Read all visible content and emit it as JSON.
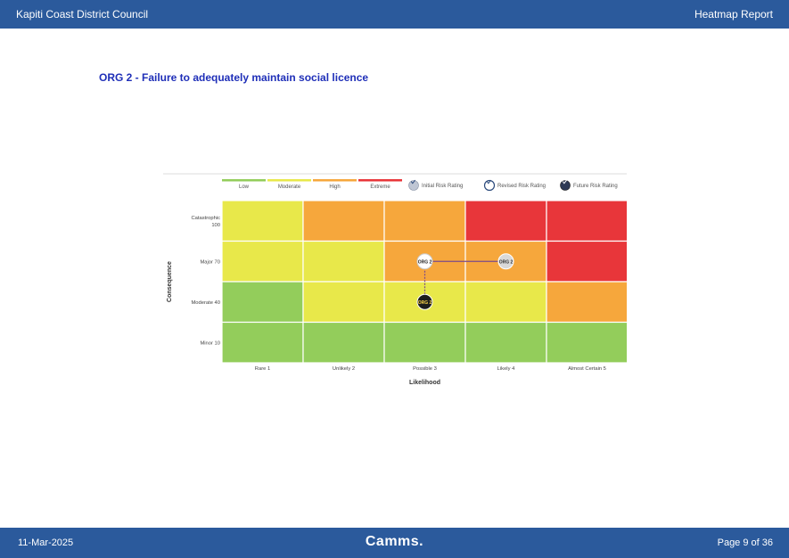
{
  "header": {
    "org_name": "Kapiti Coast District Council",
    "report_title": "Heatmap Report"
  },
  "risk": {
    "title": "ORG 2 - Failure to adequately maintain social licence"
  },
  "footer": {
    "date": "11-Mar-2025",
    "brand": "Camms.",
    "page": "Page 9 of 36"
  },
  "colors": {
    "low": "#93cd5b",
    "moderate": "#e8e84a",
    "high": "#f6a73c",
    "extreme": "#e8363a",
    "header_bar": "#2b5a9c"
  },
  "chart_data": {
    "type": "heatmap",
    "xlabel": "Likelihood",
    "ylabel": "Consequence",
    "x_categories": [
      "Rare 1",
      "Unlikely 2",
      "Possible 3",
      "Likely 4",
      "Almost Certain 5"
    ],
    "y_categories": [
      [
        "Catastrophic",
        "100"
      ],
      [
        "Major 70"
      ],
      [
        "Moderate 40"
      ],
      [
        "Minor 10"
      ]
    ],
    "severity_legend": [
      "Low",
      "Moderate",
      "High",
      "Extreme"
    ],
    "rating_legend": [
      "Initial Risk Rating",
      "Revised Risk Rating",
      "Future Risk Rating"
    ],
    "cells": [
      [
        "moderate",
        "high",
        "high",
        "extreme",
        "extreme"
      ],
      [
        "moderate",
        "moderate",
        "high",
        "high",
        "extreme"
      ],
      [
        "low",
        "moderate",
        "moderate",
        "moderate",
        "high"
      ],
      [
        "low",
        "low",
        "low",
        "low",
        "low"
      ]
    ],
    "markers": [
      {
        "label": "ORG 2",
        "rating": "Initial Risk Rating",
        "likelihood": "Likely 4",
        "consequence": "Major 70"
      },
      {
        "label": "ORG 2",
        "rating": "Revised Risk Rating",
        "likelihood": "Possible 3",
        "consequence": "Major 70"
      },
      {
        "label": "ORG 2",
        "rating": "Future Risk Rating",
        "likelihood": "Possible 3",
        "consequence": "Moderate 40"
      }
    ]
  }
}
